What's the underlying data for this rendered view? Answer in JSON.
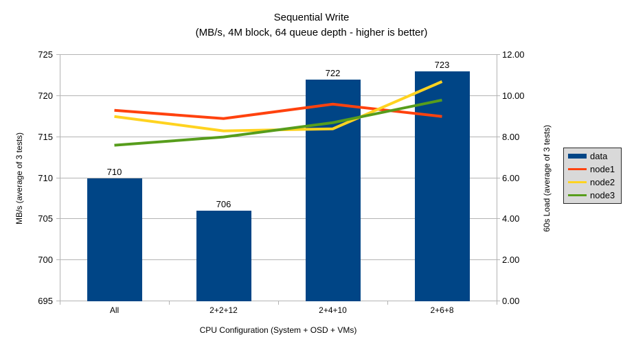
{
  "chart_data": {
    "type": "bar",
    "title": "Sequential Write",
    "subtitle": "(MB/s, 4M block, 64 queue depth - higher is better)",
    "xlabel": "CPU Configuration (System + OSD + VMs)",
    "ylabel_left": "MB/s (average of 3 tests)",
    "ylabel_right": "60s Load (average of 3 tests)",
    "categories": [
      "All",
      "2+2+12",
      "2+4+10",
      "2+6+8"
    ],
    "series": [
      {
        "name": "data",
        "type": "bar",
        "axis": "left",
        "color": "#004586",
        "values": [
          710,
          706,
          722,
          723
        ],
        "labels": [
          "710",
          "706",
          "722",
          "723"
        ]
      },
      {
        "name": "node1",
        "type": "line",
        "axis": "right",
        "color": "#ff420e",
        "values": [
          9.3,
          8.9,
          9.6,
          9.0
        ]
      },
      {
        "name": "node2",
        "type": "line",
        "axis": "right",
        "color": "#ffd320",
        "values": [
          9.0,
          8.3,
          8.4,
          10.7
        ]
      },
      {
        "name": "node3",
        "type": "line",
        "axis": "right",
        "color": "#579d1c",
        "values": [
          7.6,
          8.0,
          8.7,
          9.8
        ]
      }
    ],
    "y_left": {
      "min": 695,
      "max": 725,
      "step": 5,
      "ticks": [
        "695",
        "700",
        "705",
        "710",
        "715",
        "720",
        "725"
      ]
    },
    "y_right": {
      "min": 0,
      "max": 12,
      "step": 2,
      "ticks": [
        "0.00",
        "2.00",
        "4.00",
        "6.00",
        "8.00",
        "10.00",
        "12.00"
      ]
    },
    "grid": true,
    "legend_position": "right",
    "colors": {
      "grid": "#b3b3b3",
      "axis": "#b3b3b3",
      "text": "#000000",
      "legend_bg": "#d9d9d9",
      "legend_border": "#262626",
      "background": "#ffffff"
    }
  }
}
